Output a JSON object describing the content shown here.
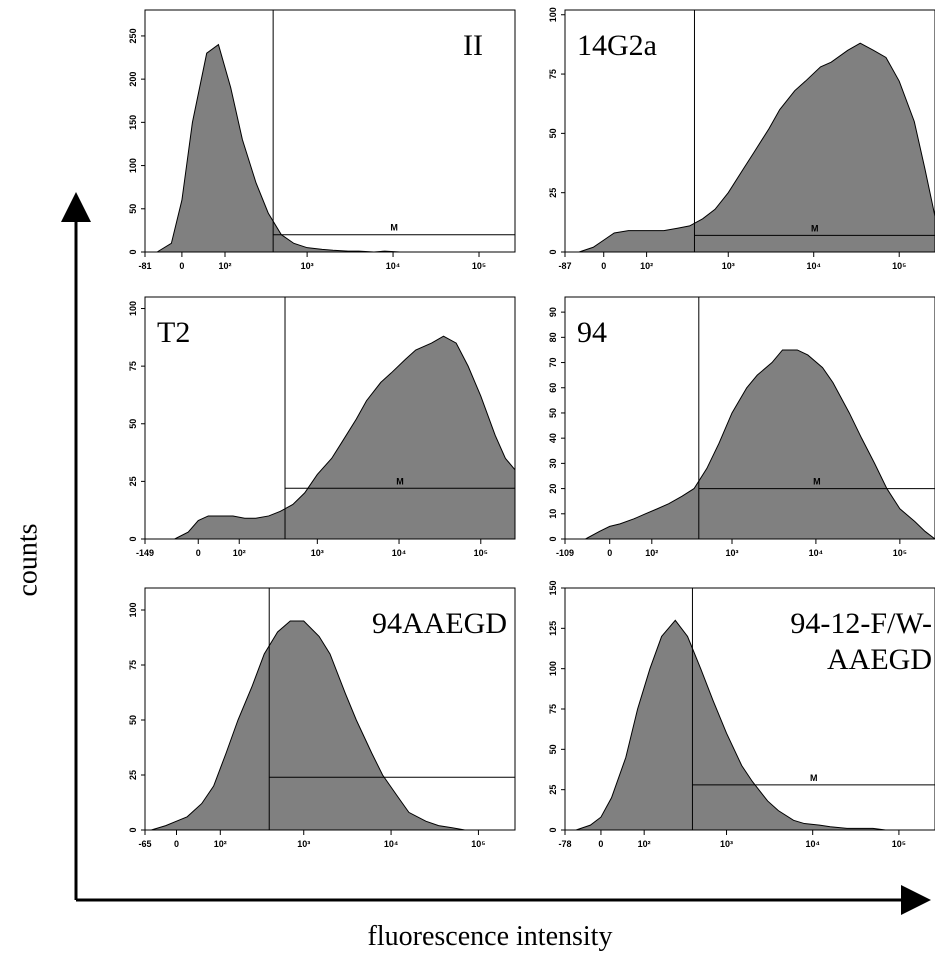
{
  "axis_labels": {
    "y": "counts",
    "x": "fluorescence intensity"
  },
  "chart_data": [
    {
      "type": "area",
      "title": [
        "II"
      ],
      "x_scale": "biexponential",
      "color": "#808080",
      "x": [
        -50,
        -20,
        0,
        20,
        50,
        80,
        120,
        170,
        250,
        350,
        500,
        700,
        1000,
        1500,
        2000,
        3000,
        4000,
        6000,
        8000,
        12000,
        16000,
        25000,
        35000,
        50000,
        70000,
        100000,
        150000,
        200000,
        262144
      ],
      "values": [
        0,
        10,
        60,
        150,
        230,
        240,
        190,
        130,
        80,
        45,
        20,
        10,
        5,
        3,
        2,
        1,
        1,
        0,
        1,
        0,
        0,
        0,
        0,
        0,
        0,
        0,
        0,
        0,
        0
      ],
      "xlim": [
        -81,
        262144
      ],
      "xticks": [
        -81,
        0,
        {
          "value": 100,
          "label": "10²"
        },
        {
          "value": 1000,
          "label": "10³"
        },
        {
          "value": 10000,
          "label": "10⁴"
        },
        {
          "value": 100000,
          "label": "10⁵"
        }
      ],
      "ylim": [
        0,
        280
      ],
      "yticks": [
        0,
        50,
        100,
        150,
        200,
        250
      ],
      "marker": {
        "start": 400,
        "level": 20,
        "label": "M"
      }
    },
    {
      "type": "area",
      "title": [
        "14G2a"
      ],
      "x_scale": "biexponential",
      "color": "#808080",
      "x": [
        -50,
        -20,
        0,
        20,
        50,
        80,
        120,
        170,
        250,
        350,
        500,
        700,
        1000,
        1500,
        2000,
        3000,
        4000,
        6000,
        8000,
        12000,
        16000,
        25000,
        35000,
        50000,
        70000,
        100000,
        150000,
        200000,
        262144
      ],
      "values": [
        0,
        2,
        5,
        8,
        9,
        9,
        9,
        9,
        10,
        11,
        14,
        18,
        25,
        35,
        42,
        52,
        60,
        68,
        72,
        78,
        80,
        85,
        88,
        85,
        82,
        72,
        55,
        35,
        15
      ],
      "xlim": [
        -87,
        262144
      ],
      "xticks": [
        -87,
        0,
        {
          "value": 100,
          "label": "10²"
        },
        {
          "value": 1000,
          "label": "10³"
        },
        {
          "value": 10000,
          "label": "10⁴"
        },
        {
          "value": 100000,
          "label": "10⁵"
        }
      ],
      "ylim": [
        0,
        102
      ],
      "yticks": [
        0,
        25,
        50,
        75,
        100
      ],
      "marker": {
        "start": 400,
        "level": 7,
        "label": "M"
      }
    },
    {
      "type": "area",
      "title": [
        "T2"
      ],
      "x_scale": "biexponential",
      "color": "#808080",
      "x": [
        -50,
        -20,
        0,
        20,
        50,
        80,
        120,
        170,
        250,
        350,
        500,
        700,
        1000,
        1500,
        2000,
        3000,
        4000,
        6000,
        8000,
        12000,
        16000,
        25000,
        35000,
        50000,
        70000,
        100000,
        150000,
        200000,
        262144
      ],
      "values": [
        0,
        3,
        8,
        10,
        10,
        10,
        9,
        9,
        10,
        12,
        15,
        20,
        28,
        35,
        42,
        52,
        60,
        68,
        72,
        78,
        82,
        85,
        88,
        85,
        75,
        62,
        45,
        35,
        30
      ],
      "xlim": [
        -149,
        262144
      ],
      "xticks": [
        -149,
        0,
        {
          "value": 100,
          "label": "10²"
        },
        {
          "value": 1000,
          "label": "10³"
        },
        {
          "value": 10000,
          "label": "10⁴"
        },
        {
          "value": 100000,
          "label": "10⁵"
        }
      ],
      "ylim": [
        0,
        105
      ],
      "yticks": [
        0,
        25,
        50,
        75,
        100
      ],
      "marker": {
        "start": 400,
        "level": 22,
        "label": "M"
      }
    },
    {
      "type": "area",
      "title": [
        "94"
      ],
      "x_scale": "biexponential",
      "color": "#808080",
      "x": [
        -50,
        -20,
        0,
        20,
        50,
        80,
        120,
        170,
        250,
        350,
        500,
        700,
        1000,
        1500,
        2000,
        3000,
        4000,
        6000,
        8000,
        12000,
        16000,
        25000,
        35000,
        50000,
        70000,
        100000,
        150000,
        200000,
        262144
      ],
      "values": [
        0,
        3,
        5,
        6,
        8,
        10,
        12,
        14,
        17,
        20,
        28,
        38,
        50,
        60,
        65,
        70,
        75,
        75,
        73,
        68,
        62,
        50,
        40,
        30,
        20,
        12,
        7,
        3,
        0
      ],
      "xlim": [
        -109,
        262144
      ],
      "xticks": [
        -109,
        0,
        {
          "value": 100,
          "label": "10²"
        },
        {
          "value": 1000,
          "label": "10³"
        },
        {
          "value": 10000,
          "label": "10⁴"
        },
        {
          "value": 100000,
          "label": "10⁵"
        }
      ],
      "ylim": [
        0,
        96
      ],
      "yticks": [
        0,
        10,
        20,
        30,
        40,
        50,
        60,
        70,
        80,
        90
      ],
      "marker": {
        "start": 400,
        "level": 20,
        "label": "M"
      }
    },
    {
      "type": "area",
      "title": [
        "94AAEGD"
      ],
      "x_scale": "biexponential",
      "color": "#808080",
      "x": [
        -50,
        -20,
        0,
        20,
        50,
        80,
        120,
        170,
        250,
        350,
        500,
        700,
        1000,
        1500,
        2000,
        3000,
        4000,
        6000,
        8000,
        12000,
        16000,
        25000,
        35000,
        50000,
        70000,
        100000,
        150000,
        200000,
        262144
      ],
      "values": [
        0,
        2,
        4,
        6,
        12,
        20,
        35,
        50,
        65,
        80,
        90,
        95,
        95,
        88,
        80,
        62,
        50,
        35,
        25,
        15,
        8,
        4,
        2,
        1,
        0,
        0,
        0,
        0,
        0
      ],
      "xlim": [
        -65,
        262144
      ],
      "xticks": [
        -65,
        0,
        {
          "value": 100,
          "label": "10²"
        },
        {
          "value": 1000,
          "label": "10³"
        },
        {
          "value": 10000,
          "label": "10⁴"
        },
        {
          "value": 100000,
          "label": "10⁵"
        }
      ],
      "ylim": [
        0,
        110
      ],
      "yticks": [
        0,
        25,
        50,
        75,
        100
      ],
      "marker": {
        "start": 400,
        "level": 24
      }
    },
    {
      "type": "area",
      "title": [
        "94-12-F/W-",
        "AAEGD"
      ],
      "x_scale": "biexponential",
      "color": "#808080",
      "x": [
        -50,
        -20,
        0,
        20,
        50,
        80,
        120,
        170,
        250,
        350,
        500,
        700,
        1000,
        1500,
        2000,
        3000,
        4000,
        6000,
        8000,
        12000,
        16000,
        25000,
        35000,
        50000,
        70000,
        100000,
        150000,
        200000,
        262144
      ],
      "values": [
        0,
        3,
        8,
        20,
        45,
        75,
        100,
        120,
        130,
        120,
        100,
        80,
        60,
        40,
        30,
        18,
        12,
        6,
        4,
        3,
        2,
        1,
        1,
        1,
        0,
        0,
        0,
        0,
        0
      ],
      "xlim": [
        -78,
        262144
      ],
      "xticks": [
        -78,
        0,
        {
          "value": 100,
          "label": "10²"
        },
        {
          "value": 1000,
          "label": "10³"
        },
        {
          "value": 10000,
          "label": "10⁴"
        },
        {
          "value": 100000,
          "label": "10⁵"
        }
      ],
      "ylim": [
        0,
        150
      ],
      "yticks": [
        0,
        25,
        50,
        75,
        100,
        125,
        150
      ],
      "marker": {
        "start": 400,
        "level": 28,
        "label": "M"
      }
    }
  ]
}
